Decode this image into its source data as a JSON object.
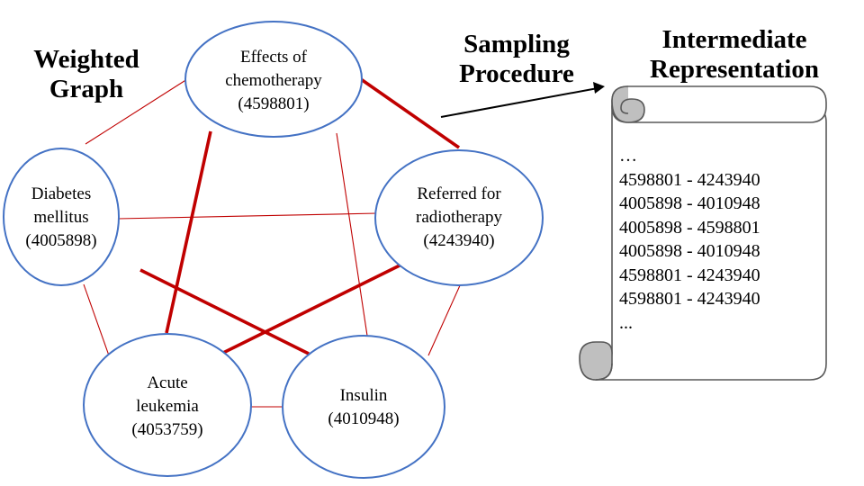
{
  "headings": {
    "graph": [
      "Weighted",
      "Graph"
    ],
    "procedure": [
      "Sampling",
      "Procedure"
    ],
    "representation": [
      "Intermediate",
      "Representation"
    ]
  },
  "nodes": [
    {
      "id": "4598801",
      "lines": [
        "Effects of",
        "chemotherapy",
        "(4598801)"
      ]
    },
    {
      "id": "4005898",
      "lines": [
        "Diabetes",
        "mellitus",
        "(4005898)"
      ]
    },
    {
      "id": "4243940",
      "lines": [
        "Referred for",
        "radiotherapy",
        "(4243940)"
      ]
    },
    {
      "id": "4053759",
      "lines": [
        "Acute",
        "leukemia",
        "(4053759)"
      ]
    },
    {
      "id": "4010948",
      "lines": [
        "Insulin",
        "(4010948)"
      ]
    }
  ],
  "edges": [
    {
      "from": "4598801",
      "to": "4005898",
      "weight": "thin"
    },
    {
      "from": "4598801",
      "to": "4243940",
      "weight": "thick"
    },
    {
      "from": "4598801",
      "to": "4053759",
      "weight": "thick"
    },
    {
      "from": "4598801",
      "to": "4010948",
      "weight": "thin"
    },
    {
      "from": "4005898",
      "to": "4243940",
      "weight": "thin"
    },
    {
      "from": "4005898",
      "to": "4053759",
      "weight": "thin"
    },
    {
      "from": "4005898",
      "to": "4010948",
      "weight": "thick"
    },
    {
      "from": "4243940",
      "to": "4053759",
      "weight": "thick"
    },
    {
      "from": "4243940",
      "to": "4010948",
      "weight": "thin"
    },
    {
      "from": "4053759",
      "to": "4010948",
      "weight": "thin"
    }
  ],
  "intermediate_representation": [
    "…",
    "4598801 - 4243940",
    "4005898 - 4010948",
    "4005898 - 4598801",
    "4005898 - 4010948",
    "4598801 - 4243940",
    "4598801 - 4243940",
    "..."
  ],
  "colors": {
    "edge": "#c00000",
    "node_stroke": "#4472c4",
    "scroll_fill": "#ffffff",
    "scroll_curl": "#bfbfbf",
    "scroll_stroke": "#595959",
    "text": "#000000"
  }
}
